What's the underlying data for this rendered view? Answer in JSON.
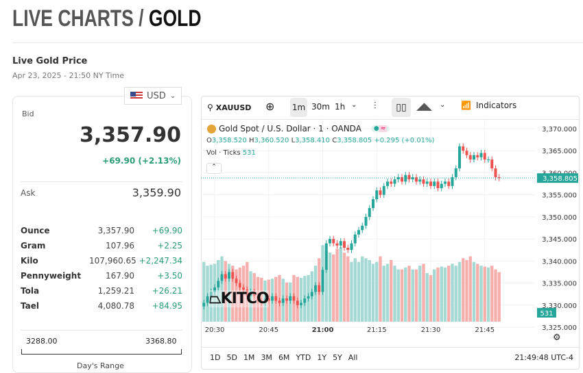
{
  "header": {
    "title_prefix": "LIVE CHARTS / ",
    "title_metal": "GOLD",
    "subtitle": "Live Gold Price",
    "timestamp": "Apr 23, 2025 - 21:50 NY Time"
  },
  "currency": {
    "selected": "USD",
    "icon": "us-flag-icon"
  },
  "quote": {
    "bid_label": "Bid",
    "bid": "3,357.90",
    "change": "+69.90 (+2.13%)",
    "ask_label": "Ask",
    "ask": "3,359.90"
  },
  "units": [
    {
      "name": "Ounce",
      "price": "3,357.90",
      "change": "+69.90"
    },
    {
      "name": "Gram",
      "price": "107.96",
      "change": "+2.25"
    },
    {
      "name": "Kilo",
      "price": "107,960.65",
      "change": "+2,247.34"
    },
    {
      "name": "Pennyweight",
      "price": "167.90",
      "change": "+3.50"
    },
    {
      "name": "Tola",
      "price": "1,259.21",
      "change": "+26.21"
    },
    {
      "name": "Tael",
      "price": "4,080.78",
      "change": "+84.95"
    }
  ],
  "days_range": {
    "low": "3288.00",
    "high": "3368.80",
    "label": "Day's Range"
  },
  "colors": {
    "up": "#26a69a",
    "down": "#ef5350",
    "up_vol": "#a5d9d3",
    "down_vol": "#f5b0ae",
    "accent_green": "#2a9d74"
  },
  "toolbar": {
    "symbol": "XAUUSD",
    "intervals": [
      "1m",
      "30m",
      "1h"
    ],
    "selected_interval": "1m",
    "indicators": "Indicators"
  },
  "legend": {
    "title": "Gold Spot / U.S. Dollar · 1 · OANDA",
    "o": "3,358.520",
    "h": "3,360.520",
    "l": "3,358.410",
    "c": "3,358.805",
    "chg": "+0.295 (+0.01%)",
    "vol_label": "Vol · Ticks",
    "vol": "531"
  },
  "watermark": "KITCO",
  "ranges": [
    "1D",
    "5D",
    "1M",
    "3M",
    "6M",
    "YTD",
    "1Y",
    "5Y",
    "All"
  ],
  "clock": "21:49:48 UTC-4",
  "chart_data": {
    "type": "candlestick",
    "y_ticks": [
      "3,370.000",
      "3,365.000",
      "3,360.000",
      "3,355.000",
      "3,350.000",
      "3,345.000",
      "3,340.000",
      "3,335.000",
      "3,330.000",
      "3,325.000"
    ],
    "ylim": [
      3324.5,
      3371.5
    ],
    "x_ticks": [
      "20:30",
      "20:45",
      "21:00",
      "21:15",
      "21:30",
      "21:45"
    ],
    "start_time": "20:27",
    "interval_minutes": 1,
    "last_price_label": "3,358.805",
    "last_volume_label": "531",
    "closes": [
      3330.5,
      3332,
      3333,
      3334,
      3335.5,
      3337,
      3336,
      3337.5,
      3336,
      3335,
      3334,
      3333.5,
      3332,
      3333,
      3332,
      3331,
      3330.5,
      3331.5,
      3331,
      3332,
      3331,
      3330.5,
      3331.5,
      3331,
      3332,
      3331,
      3330,
      3330.5,
      3331.5,
      3332,
      3333,
      3334.5,
      3333,
      3338,
      3344,
      3345,
      3344,
      3343.5,
      3344.5,
      3343,
      3342.5,
      3344,
      3346,
      3347,
      3348,
      3350,
      3352,
      3354,
      3356,
      3355,
      3357,
      3358,
      3357.5,
      3358.5,
      3359,
      3358,
      3359.5,
      3358.5,
      3359,
      3358,
      3358.5,
      3357.5,
      3358,
      3357,
      3358,
      3356.5,
      3357.5,
      3358,
      3357,
      3359,
      3361,
      3366,
      3365,
      3364,
      3363,
      3364,
      3363.5,
      3364.5,
      3363,
      3363,
      3361,
      3359,
      3358.8
    ],
    "volumes": [
      640,
      600,
      610,
      620,
      660,
      700,
      650,
      620,
      600,
      560,
      580,
      600,
      640,
      540,
      520,
      480,
      470,
      440,
      450,
      460,
      480,
      500,
      460,
      420,
      420,
      500,
      480,
      470,
      490,
      500,
      540,
      600,
      680,
      820,
      760,
      740,
      720,
      780,
      800,
      740,
      700,
      640,
      680,
      640,
      700,
      680,
      660,
      620,
      640,
      700,
      600,
      620,
      660,
      600,
      560,
      560,
      580,
      600,
      560,
      560,
      600,
      620,
      520,
      500,
      560,
      580,
      590,
      580,
      600,
      620,
      600,
      640,
      680,
      660,
      700,
      640,
      620,
      600,
      590,
      580,
      600,
      560,
      531
    ]
  }
}
